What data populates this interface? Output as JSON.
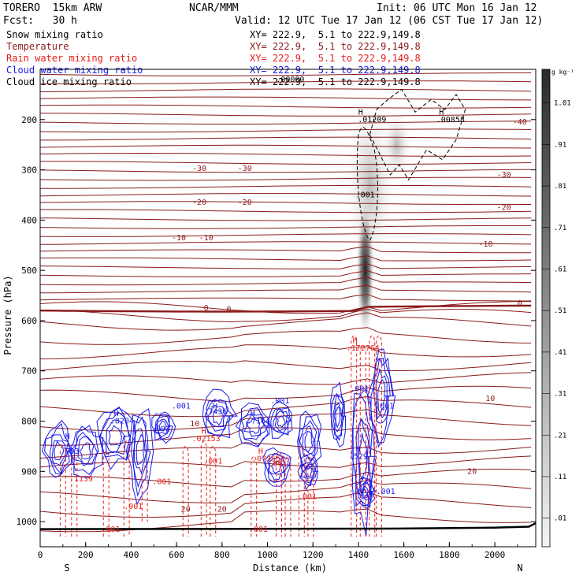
{
  "header": {
    "model": "TORERO  15km ARW",
    "org": "NCAR/MMM",
    "init": "Init: 06 UTC Mon 16 Jan 12",
    "fcst": "Fcst:   30 h",
    "valid": "Valid: 12 UTC Tue 17 Jan 12 (06 CST Tue 17 Jan 12)"
  },
  "legend": [
    {
      "name": "Snow mixing ratio",
      "color": "#000000",
      "xy": "XY= 222.9,  5.1 to 222.9,149.8"
    },
    {
      "name": "Temperature",
      "color": "#8b1a1a",
      "xy": "XY= 222.9,  5.1 to 222.9,149.8"
    },
    {
      "name": "Rain water mixing ratio",
      "color": "#e8201a",
      "xy": "XY= 222.9,  5.1 to 222.9,149.8"
    },
    {
      "name": "Cloud water mixing ratio",
      "color": "#1a1ae8",
      "xy": "XY= 222.9,  5.1 to 222.9,149.8"
    },
    {
      "name": "Cloud ice mixing ratio",
      "color": "#000000",
      "xy": "XY= 222.9,  5.1 to 222.9,149.8"
    }
  ],
  "colorbar": {
    "unit": "g kg⁻¹",
    "labels": [
      "1.01",
      ".91",
      ".81",
      ".71",
      ".61",
      ".51",
      ".41",
      ".31",
      ".21",
      ".11",
      ".01"
    ]
  },
  "chart_data": {
    "type": "contour_cross_section",
    "xlabel": "Distance (km)",
    "ylabel": "Pressure (hPa)",
    "xlim": [
      0,
      2180
    ],
    "ylim": [
      1050,
      100
    ],
    "xticks": [
      0,
      200,
      400,
      600,
      800,
      1000,
      1200,
      1400,
      1600,
      1800,
      2000
    ],
    "yticks": [
      200,
      300,
      400,
      500,
      600,
      700,
      800,
      900,
      1000
    ],
    "x_ends": {
      "left": "S",
      "right": "N"
    },
    "temperature_isotherms": [
      {
        "label": "-40",
        "pressure": 225
      },
      {
        "label": "-30",
        "pressure": 300
      },
      {
        "label": "-20",
        "pressure": 365
      },
      {
        "label": "-10",
        "pressure": 440
      },
      {
        "label": "0",
        "pressure": 580
      },
      {
        "label": "10",
        "pressure": 760
      },
      {
        "label": "20",
        "pressure": 960
      }
    ],
    "temperature_labels": [
      {
        "text": "-40",
        "x": 2110,
        "p": 210
      },
      {
        "text": "-30",
        "x": 700,
        "p": 302
      },
      {
        "text": "-30",
        "x": 900,
        "p": 302
      },
      {
        "text": "-30",
        "x": 2040,
        "p": 315
      },
      {
        "text": "-20",
        "x": 700,
        "p": 370
      },
      {
        "text": "-20",
        "x": 900,
        "p": 370
      },
      {
        "text": "-20",
        "x": 2040,
        "p": 380
      },
      {
        "text": "-10",
        "x": 610,
        "p": 440
      },
      {
        "text": "-10",
        "x": 730,
        "p": 440
      },
      {
        "text": "-10",
        "x": 1960,
        "p": 453
      },
      {
        "text": "0",
        "x": 730,
        "p": 580
      },
      {
        "text": "0",
        "x": 830,
        "p": 582
      },
      {
        "text": "0",
        "x": 2110,
        "p": 570
      },
      {
        "text": "10",
        "x": 680,
        "p": 810
      },
      {
        "text": "10",
        "x": 1980,
        "p": 760
      },
      {
        "text": "20",
        "x": 1900,
        "p": 905
      },
      {
        "text": "20",
        "x": 640,
        "p": 980
      },
      {
        "text": "20",
        "x": 800,
        "p": 980
      }
    ],
    "cloud_water_labels": [
      {
        "text": "H",
        "x": 120,
        "p": 835
      },
      {
        "text": ".793",
        "x": 130,
        "p": 865
      },
      {
        "text": "H",
        "x": 335,
        "p": 790
      },
      {
        "text": ".8204",
        "x": 360,
        "p": 805
      },
      {
        "text": ".001",
        "x": 530,
        "p": 820
      },
      {
        "text": ".001",
        "x": 620,
        "p": 775
      },
      {
        "text": "H",
        "x": 770,
        "p": 775
      },
      {
        "text": ".7436",
        "x": 770,
        "p": 786
      },
      {
        "text": "H",
        "x": 935,
        "p": 790
      },
      {
        "text": ".7164",
        "x": 960,
        "p": 805
      },
      {
        "text": ".001",
        "x": 1055,
        "p": 765
      },
      {
        "text": "H",
        "x": 1400,
        "p": 860
      },
      {
        "text": ".529",
        "x": 1400,
        "p": 875
      },
      {
        "text": ".001",
        "x": 1405,
        "p": 740
      },
      {
        "text": ".001",
        "x": 1515,
        "p": 775
      },
      {
        "text": ".001",
        "x": 1520,
        "p": 945
      }
    ],
    "rain_water_labels": [
      {
        "text": "H",
        "x": 1385,
        "p": 645
      },
      {
        "text": ".172764",
        "x": 1420,
        "p": 660
      },
      {
        "text": "H",
        "x": 720,
        "p": 825
      },
      {
        "text": ".02153",
        "x": 730,
        "p": 840
      },
      {
        "text": "H",
        "x": 970,
        "p": 865
      },
      {
        "text": ".073553",
        "x": 1005,
        "p": 880
      },
      {
        "text": ".001",
        "x": 760,
        "p": 885
      },
      {
        "text": ".001",
        "x": 535,
        "p": 925
      },
      {
        "text": ".001",
        "x": 1045,
        "p": 890
      },
      {
        "text": ".1139",
        "x": 180,
        "p": 920
      },
      {
        "text": ".001",
        "x": 410,
        "p": 975
      },
      {
        "text": ".001",
        "x": 1175,
        "p": 955
      },
      {
        "text": ".001",
        "x": 310,
        "p": 1020
      },
      {
        "text": ".001",
        "x": 960,
        "p": 1020
      }
    ],
    "cloud_ice_labels": [
      {
        "text": "H",
        "x": 1410,
        "p": 190
      },
      {
        "text": ".01209",
        "x": 1460,
        "p": 205
      },
      {
        "text": "H",
        "x": 1765,
        "p": 190
      },
      {
        "text": ".00858",
        "x": 1805,
        "p": 205
      },
      {
        "text": ".001",
        "x": 1430,
        "p": 355
      },
      {
        "text": ".00000",
        "x": 1100,
        "p": 125
      }
    ],
    "snow_max": {
      "x": 1430,
      "p": 500,
      "value_range": [
        0.01,
        1.01
      ]
    }
  }
}
